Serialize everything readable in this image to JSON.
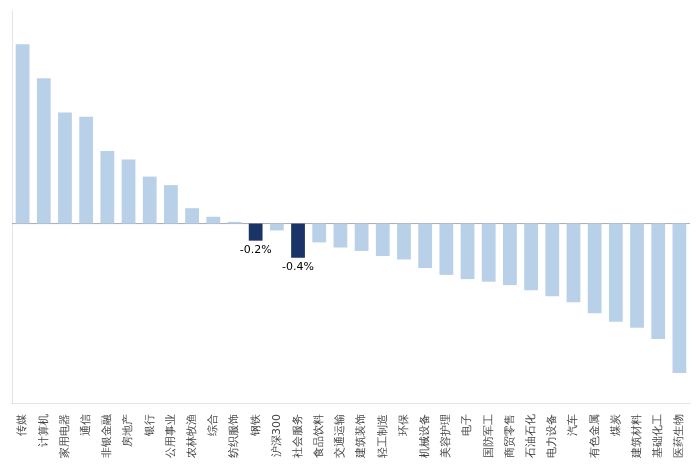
{
  "chart_data": {
    "type": "bar",
    "categories": [
      "传媒",
      "计算机",
      "家用电器",
      "通信",
      "非银金融",
      "房地产",
      "银行",
      "公用事业",
      "农林牧渔",
      "综合",
      "纺织服饰",
      "钢铁",
      "沪深300",
      "社会服务",
      "食品饮料",
      "交通运输",
      "建筑装饰",
      "轻工制造",
      "环保",
      "机械设备",
      "美容护理",
      "电子",
      "国防军工",
      "商贸零售",
      "石油石化",
      "电力设备",
      "汽车",
      "有色金属",
      "煤炭",
      "建筑材料",
      "基础化工",
      "医药生物"
    ],
    "values": [
      2.1,
      1.7,
      1.3,
      1.25,
      0.85,
      0.75,
      0.55,
      0.45,
      0.18,
      0.08,
      0.02,
      -0.2,
      -0.08,
      -0.4,
      -0.22,
      -0.28,
      -0.32,
      -0.38,
      -0.42,
      -0.52,
      -0.6,
      -0.65,
      -0.68,
      -0.72,
      -0.78,
      -0.85,
      -0.92,
      -1.05,
      -1.15,
      -1.22,
      -1.35,
      -1.75
    ],
    "colors": [
      "#b8d0e8",
      "#b8d0e8",
      "#b8d0e8",
      "#b8d0e8",
      "#b8d0e8",
      "#b8d0e8",
      "#b8d0e8",
      "#b8d0e8",
      "#b8d0e8",
      "#b8d0e8",
      "#b8d0e8",
      "#1a3468",
      "#b8d0e8",
      "#1a3468",
      "#b8d0e8",
      "#b8d0e8",
      "#b8d0e8",
      "#b8d0e8",
      "#b8d0e8",
      "#b8d0e8",
      "#b8d0e8",
      "#b8d0e8",
      "#b8d0e8",
      "#b8d0e8",
      "#b8d0e8",
      "#b8d0e8",
      "#b8d0e8",
      "#b8d0e8",
      "#b8d0e8",
      "#b8d0e8",
      "#b8d0e8",
      "#b8d0e8"
    ],
    "annotations": [
      {
        "text": "-0.2%",
        "category": "钢铁"
      },
      {
        "text": "-0.4%",
        "category": "社会服务"
      }
    ],
    "ylim": [
      -2.1,
      2.5
    ],
    "yticks": [],
    "grid": false,
    "tick_labels": "x"
  }
}
